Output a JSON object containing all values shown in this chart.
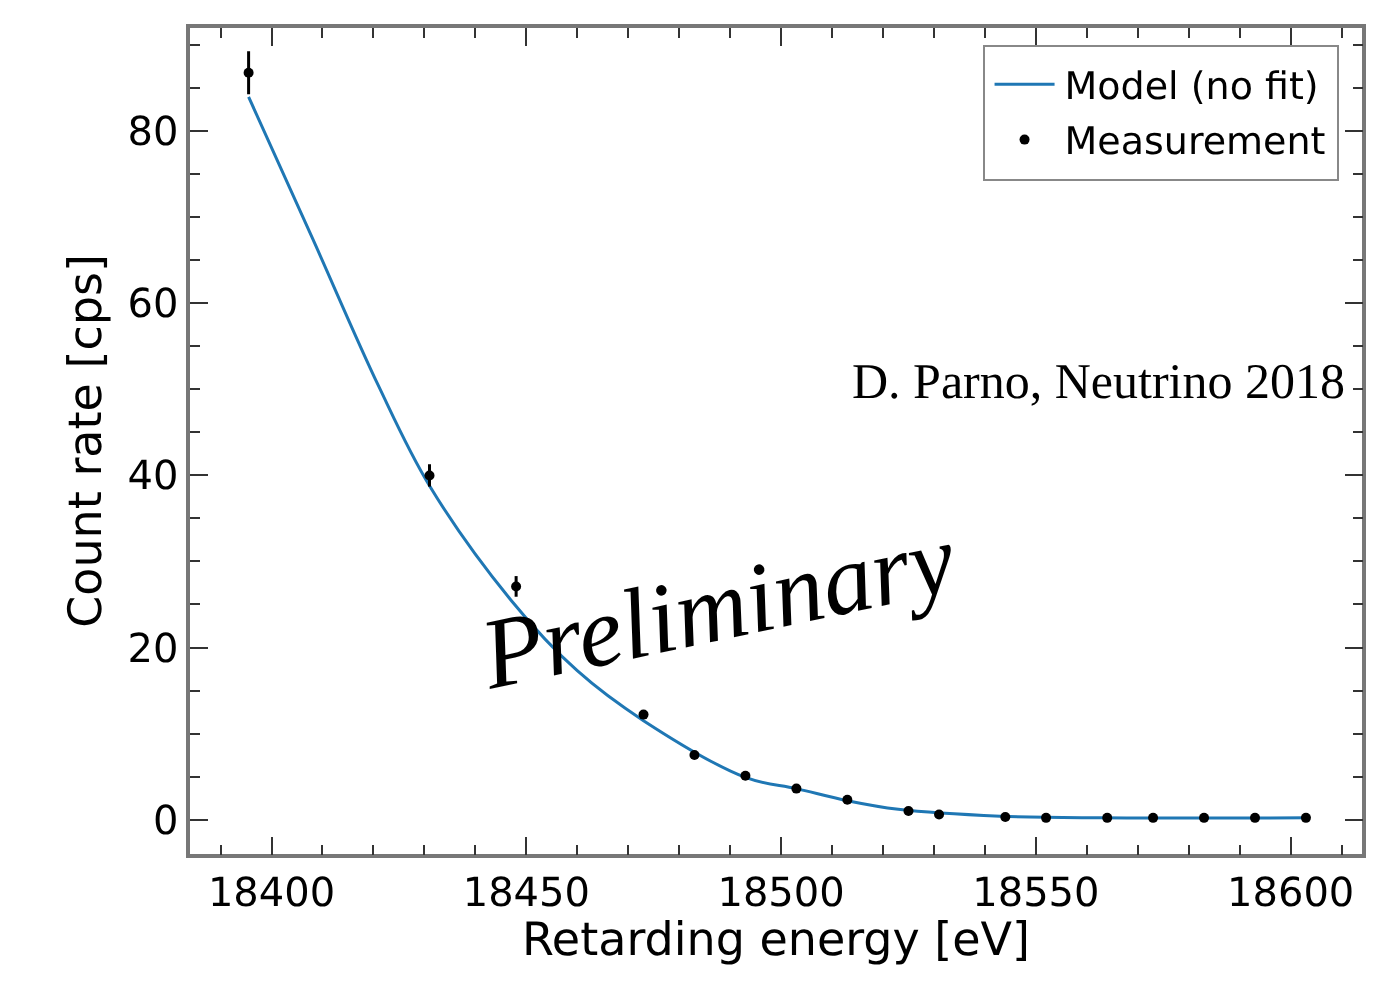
{
  "chart_data": {
    "type": "line",
    "xlabel": "Retarding energy [eV]",
    "ylabel": "Count rate [cps]",
    "xlim": [
      18384,
      18614
    ],
    "ylim": [
      -4,
      92
    ],
    "xticks": [
      18400,
      18450,
      18500,
      18550,
      18600
    ],
    "yticks": [
      0,
      20,
      40,
      60,
      80
    ],
    "grid": false,
    "legend": "top right",
    "series": [
      {
        "name": "Model (no fit)",
        "color": "#1f77b4",
        "marker": "none",
        "line_style": "solid",
        "x": [
          18395.5,
          18408,
          18421,
          18431,
          18447,
          18460,
          18473,
          18493,
          18503,
          18513,
          18523,
          18543,
          18563,
          18603
        ],
        "values": [
          84,
          67.6,
          50.4,
          38.8,
          25.5,
          17.3,
          11.5,
          4.9,
          3.6,
          2.2,
          1.2,
          0.4,
          0.2,
          0.2
        ]
      },
      {
        "name": "Measurement",
        "type": "scatter",
        "color": "#000000",
        "marker": "circle",
        "x": [
          18395.5,
          18431,
          18448,
          18473,
          18483,
          18493,
          18503,
          18513,
          18525,
          18531,
          18544,
          18552,
          18564,
          18573,
          18583,
          18593,
          18603
        ],
        "values": [
          86.8,
          40,
          27.1,
          12.2,
          7.5,
          5.1,
          3.6,
          2.3,
          1.0,
          0.6,
          0.3,
          0.2,
          0.2,
          0.2,
          0.2,
          0.2,
          0.2
        ],
        "errors": [
          2.5,
          1.3,
          1.2,
          null,
          null,
          null,
          null,
          null,
          null,
          null,
          null,
          null,
          null,
          null,
          null,
          null,
          null
        ]
      }
    ],
    "annotations": [
      "D. Parno, Neutrino 2018",
      "Preliminary"
    ]
  }
}
